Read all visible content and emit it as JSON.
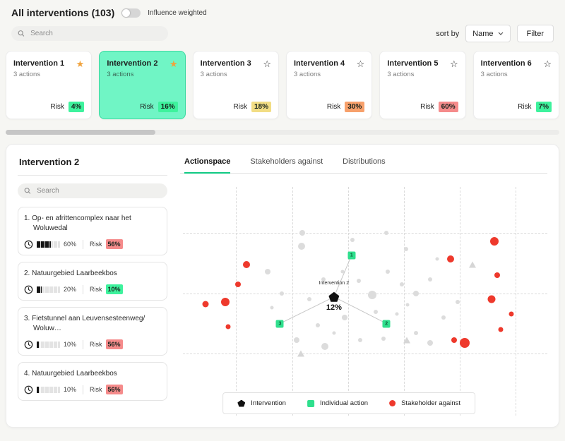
{
  "header": {
    "title": "All interventions (103)",
    "toggle_label": "Influence weighted",
    "search_placeholder": "Search",
    "sort_by_label": "sort by",
    "sort_value": "Name",
    "filter_label": "Filter"
  },
  "labels": {
    "risk": "Risk"
  },
  "cards": [
    {
      "name": "Intervention 1",
      "actions": "3 actions",
      "risk": "4%",
      "risk_color": "green",
      "starred": true,
      "selected": false
    },
    {
      "name": "Intervention 2",
      "actions": "3 actions",
      "risk": "16%",
      "risk_color": "green",
      "starred": true,
      "selected": true
    },
    {
      "name": "Intervention 3",
      "actions": "3 actions",
      "risk": "18%",
      "risk_color": "yellow",
      "starred": false,
      "selected": false
    },
    {
      "name": "Intervention 4",
      "actions": "3 actions",
      "risk": "30%",
      "risk_color": "orange",
      "starred": false,
      "selected": false
    },
    {
      "name": "Intervention 5",
      "actions": "3 actions",
      "risk": "60%",
      "risk_color": "red",
      "starred": false,
      "selected": false
    },
    {
      "name": "Intervention 6",
      "actions": "3 actions",
      "risk": "7%",
      "risk_color": "green",
      "starred": false,
      "selected": false
    }
  ],
  "detail": {
    "title": "Intervention 2",
    "search_placeholder": "Search",
    "tabs": [
      {
        "label": "Actionspace",
        "active": true
      },
      {
        "label": "Stakeholders against",
        "active": false
      },
      {
        "label": "Distributions",
        "active": false
      }
    ],
    "actions": [
      {
        "index": "1.",
        "title": "Op- en afrittencomplex naar het Woluwedal",
        "progress": "60%",
        "progress_value": 60,
        "risk": "56%",
        "risk_color": "red"
      },
      {
        "index": "2.",
        "title": "Natuurgebied Laarbeekbos",
        "progress": "20%",
        "progress_value": 20,
        "risk": "10%",
        "risk_color": "green"
      },
      {
        "index": "3.",
        "title": "Fietstunnel aan Leuvensesteenweg/ Woluw…",
        "progress": "10%",
        "progress_value": 10,
        "risk": "56%",
        "risk_color": "red"
      },
      {
        "index": "4.",
        "title": "Natuurgebied Laarbeekbos",
        "progress": "10%",
        "progress_value": 10,
        "risk": "56%",
        "risk_color": "red"
      }
    ]
  },
  "chart_data": {
    "type": "scatter",
    "title": "Actionspace",
    "intervention": {
      "label": "Intervention 2",
      "value": "12%",
      "x": 41.9,
      "y": 47.5
    },
    "individual_actions": [
      {
        "label": "1",
        "x": 46.7,
        "y": 29.5
      },
      {
        "label": "3",
        "x": 27.2,
        "y": 59.0
      },
      {
        "label": "2",
        "x": 56.2,
        "y": 59.0
      }
    ],
    "stakeholders_against": [
      {
        "x": 18.1,
        "y": 33.4,
        "size": 10
      },
      {
        "x": 15.8,
        "y": 42.0,
        "size": 8
      },
      {
        "x": 7.0,
        "y": 50.5,
        "size": 9
      },
      {
        "x": 12.4,
        "y": 49.8,
        "size": 12
      },
      {
        "x": 13.1,
        "y": 60.3,
        "size": 7
      },
      {
        "x": 73.7,
        "y": 31.1,
        "size": 10
      },
      {
        "x": 85.5,
        "y": 23.6,
        "size": 12
      },
      {
        "x": 86.3,
        "y": 38.0,
        "size": 8
      },
      {
        "x": 84.8,
        "y": 48.5,
        "size": 11
      },
      {
        "x": 87.4,
        "y": 61.6,
        "size": 7
      },
      {
        "x": 77.5,
        "y": 67.5,
        "size": 14
      },
      {
        "x": 74.6,
        "y": 66.3,
        "size": 8
      },
      {
        "x": 90.2,
        "y": 55.0,
        "size": 7
      }
    ],
    "neutral_points": [
      {
        "x": 23.8,
        "y": 36.7,
        "size": 8
      },
      {
        "x": 33.0,
        "y": 25.6,
        "size": 10
      },
      {
        "x": 27.6,
        "y": 45.9,
        "size": 6
      },
      {
        "x": 35.2,
        "y": 48.5,
        "size": 6
      },
      {
        "x": 39.0,
        "y": 40.0,
        "size": 6
      },
      {
        "x": 44.2,
        "y": 36.7,
        "size": 5
      },
      {
        "x": 48.6,
        "y": 40.7,
        "size": 6
      },
      {
        "x": 52.4,
        "y": 46.6,
        "size": 12
      },
      {
        "x": 56.6,
        "y": 36.7,
        "size": 6
      },
      {
        "x": 60.4,
        "y": 42.0,
        "size": 6
      },
      {
        "x": 64.2,
        "y": 45.9,
        "size": 8
      },
      {
        "x": 68.0,
        "y": 40.0,
        "size": 6
      },
      {
        "x": 53.3,
        "y": 54.1,
        "size": 6
      },
      {
        "x": 44.8,
        "y": 56.4,
        "size": 8
      },
      {
        "x": 37.5,
        "y": 59.7,
        "size": 6
      },
      {
        "x": 31.8,
        "y": 66.2,
        "size": 8
      },
      {
        "x": 39.4,
        "y": 68.9,
        "size": 10
      },
      {
        "x": 49.0,
        "y": 66.2,
        "size": 6
      },
      {
        "x": 55.4,
        "y": 65.6,
        "size": 6
      },
      {
        "x": 64.2,
        "y": 63.0,
        "size": 6
      },
      {
        "x": 68.0,
        "y": 67.5,
        "size": 8
      },
      {
        "x": 71.8,
        "y": 56.4,
        "size": 6
      },
      {
        "x": 75.6,
        "y": 49.8,
        "size": 6
      },
      {
        "x": 56.2,
        "y": 19.7,
        "size": 6
      },
      {
        "x": 61.5,
        "y": 26.9,
        "size": 6
      },
      {
        "x": 33.3,
        "y": 19.7,
        "size": 8
      },
      {
        "x": 47.0,
        "y": 23.0,
        "size": 6
      },
      {
        "x": 59.0,
        "y": 55.0,
        "size": 5
      },
      {
        "x": 42.0,
        "y": 63.0,
        "size": 5
      },
      {
        "x": 62.0,
        "y": 51.0,
        "size": 5
      },
      {
        "x": 25.0,
        "y": 52.0,
        "size": 5
      },
      {
        "x": 70.0,
        "y": 31.0,
        "size": 5
      }
    ],
    "neutral_triangles": [
      {
        "x": 79.6,
        "y": 33.4
      },
      {
        "x": 61.7,
        "y": 66.2
      },
      {
        "x": 32.8,
        "y": 72.1
      }
    ],
    "grid": {
      "vlines": [
        15.2,
        30.5,
        45.7,
        61.0,
        76.2,
        91.4
      ],
      "hlines": [
        19.7,
        45.9,
        72.1
      ]
    },
    "legend": [
      {
        "marker": "pentagon",
        "label": "Intervention"
      },
      {
        "marker": "square",
        "label": "Individual action"
      },
      {
        "marker": "dot",
        "label": "Stakeholder against"
      }
    ]
  },
  "colors": {
    "selected_card": "#70f5c5",
    "green_badge": "#3ef29d",
    "yellow_badge": "#f2dd84",
    "orange_badge": "#f7a06b",
    "red_badge": "#f58b8b",
    "star": "#f0a23c",
    "tab_active_underline": "#10c983",
    "individual_action": "#2fdf8d",
    "stakeholder_against": "#ee392c",
    "neutral_point": "#dcdcdc"
  }
}
